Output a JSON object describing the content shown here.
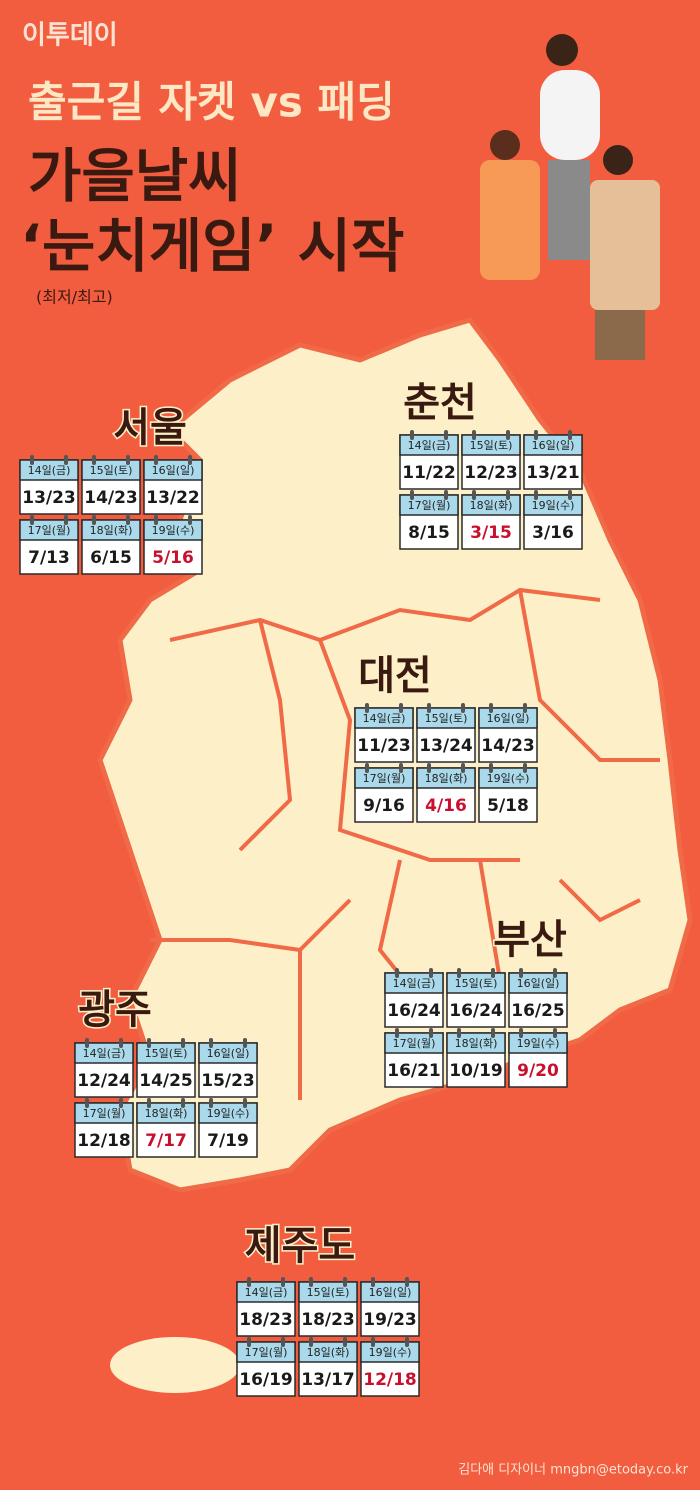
{
  "header": {
    "logo": "이투데이",
    "title_line1": "출근길 자켓 vs 패딩",
    "title_line2": "가을날씨",
    "title_line3": "‘눈치게임’ 시작",
    "note": "(최저/최고)"
  },
  "highlight_color": "#c8102e",
  "regions": [
    {
      "name": "서울",
      "cells": [
        {
          "day": "14일(금)",
          "temp": "13/23"
        },
        {
          "day": "15일(토)",
          "temp": "14/23"
        },
        {
          "day": "16일(일)",
          "temp": "13/22"
        },
        {
          "day": "17일(월)",
          "temp": "7/13"
        },
        {
          "day": "18일(화)",
          "temp": "6/15"
        },
        {
          "day": "19일(수)",
          "temp": "5/16",
          "highlight": true
        }
      ]
    },
    {
      "name": "춘천",
      "cells": [
        {
          "day": "14일(금)",
          "temp": "11/22"
        },
        {
          "day": "15일(토)",
          "temp": "12/23"
        },
        {
          "day": "16일(일)",
          "temp": "13/21"
        },
        {
          "day": "17일(월)",
          "temp": "8/15"
        },
        {
          "day": "18일(화)",
          "temp": "3/15",
          "highlight": true
        },
        {
          "day": "19일(수)",
          "temp": "3/16"
        }
      ]
    },
    {
      "name": "대전",
      "cells": [
        {
          "day": "14일(금)",
          "temp": "11/23"
        },
        {
          "day": "15일(토)",
          "temp": "13/24"
        },
        {
          "day": "16일(일)",
          "temp": "14/23"
        },
        {
          "day": "17일(월)",
          "temp": "9/16"
        },
        {
          "day": "18일(화)",
          "temp": "4/16",
          "highlight": true
        },
        {
          "day": "19일(수)",
          "temp": "5/18"
        }
      ]
    },
    {
      "name": "부산",
      "cells": [
        {
          "day": "14일(금)",
          "temp": "16/24"
        },
        {
          "day": "15일(토)",
          "temp": "16/24"
        },
        {
          "day": "16일(일)",
          "temp": "16/25"
        },
        {
          "day": "17일(월)",
          "temp": "16/21"
        },
        {
          "day": "18일(화)",
          "temp": "10/19"
        },
        {
          "day": "19일(수)",
          "temp": "9/20",
          "highlight": true
        }
      ]
    },
    {
      "name": "광주",
      "cells": [
        {
          "day": "14일(금)",
          "temp": "12/24"
        },
        {
          "day": "15일(토)",
          "temp": "14/25"
        },
        {
          "day": "16일(일)",
          "temp": "15/23"
        },
        {
          "day": "17일(월)",
          "temp": "12/18"
        },
        {
          "day": "18일(화)",
          "temp": "7/17",
          "highlight": true
        },
        {
          "day": "19일(수)",
          "temp": "7/19"
        }
      ]
    },
    {
      "name": "제주도",
      "cells": [
        {
          "day": "14일(금)",
          "temp": "18/23"
        },
        {
          "day": "15일(토)",
          "temp": "18/23"
        },
        {
          "day": "16일(일)",
          "temp": "19/23"
        },
        {
          "day": "17일(월)",
          "temp": "16/19"
        },
        {
          "day": "18일(화)",
          "temp": "13/17"
        },
        {
          "day": "19일(수)",
          "temp": "12/18",
          "highlight": true
        }
      ]
    }
  ],
  "footer": {
    "credit": "김다애 디자이너 mngbn@etoday.co.kr"
  }
}
